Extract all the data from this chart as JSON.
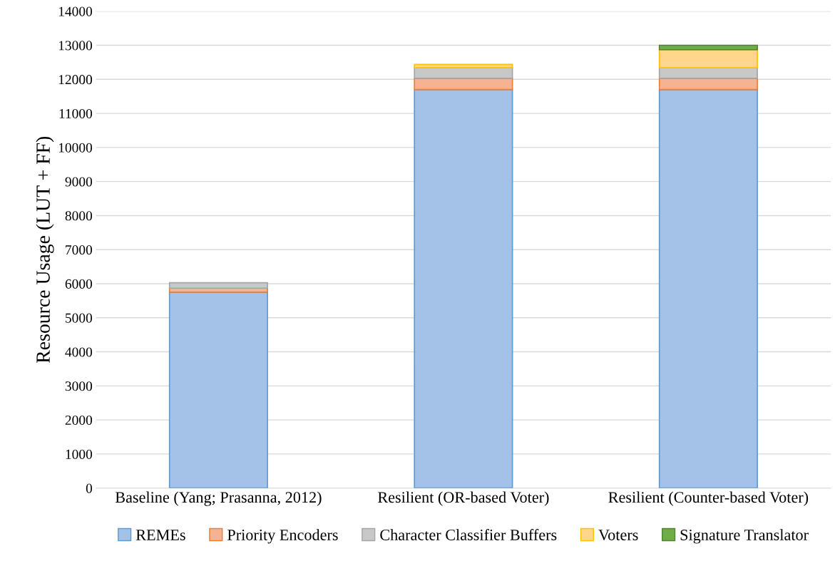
{
  "chart_data": {
    "type": "bar",
    "stacked": true,
    "ylabel": "Resource Usage (LUT + FF)",
    "categories": [
      "Baseline (Yang; Prasanna, 2012)",
      "Resilient (OR-based Voter)",
      "Resilient (Counter-based Voter)"
    ],
    "series": [
      {
        "name": "REMEs",
        "color": "#a4c2e8",
        "values": [
          5750,
          11700,
          11700
        ]
      },
      {
        "name": "Priority Encoders",
        "color": "#f6b394",
        "values": [
          120,
          330,
          330
        ]
      },
      {
        "name": "Character Classifier Buffers",
        "color": "#c8c8c8",
        "values": [
          160,
          310,
          310
        ]
      },
      {
        "name": "Voters",
        "color": "#ffd68a",
        "values": [
          null,
          100,
          530
        ]
      },
      {
        "name": "Signature Translator",
        "color": "#70ad47",
        "values": [
          null,
          null,
          130
        ]
      }
    ],
    "ylim": [
      0,
      14000
    ],
    "yticks": [
      0,
      1000,
      2000,
      3000,
      4000,
      5000,
      6000,
      7000,
      8000,
      9000,
      10000,
      11000,
      12000,
      13000,
      14000
    ],
    "grid": "y",
    "legend": "bottom"
  }
}
